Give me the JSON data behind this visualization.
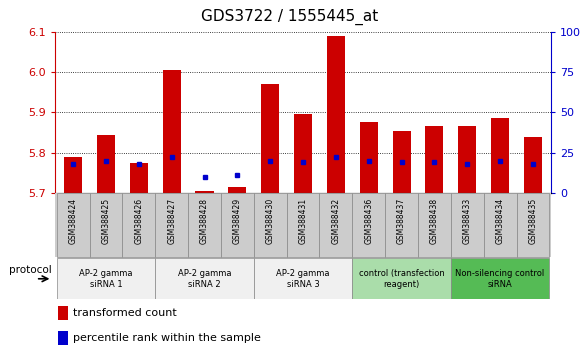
{
  "title": "GDS3722 / 1555445_at",
  "samples": [
    "GSM388424",
    "GSM388425",
    "GSM388426",
    "GSM388427",
    "GSM388428",
    "GSM388429",
    "GSM388430",
    "GSM388431",
    "GSM388432",
    "GSM388436",
    "GSM388437",
    "GSM388438",
    "GSM388433",
    "GSM388434",
    "GSM388435"
  ],
  "transformed_count": [
    5.79,
    5.845,
    5.775,
    6.005,
    5.705,
    5.715,
    5.97,
    5.895,
    6.09,
    5.875,
    5.855,
    5.865,
    5.865,
    5.885,
    5.84
  ],
  "percentile_rank": [
    18,
    20,
    18,
    22,
    10,
    11,
    20,
    19,
    22,
    20,
    19,
    19,
    18,
    20,
    18
  ],
  "ylim_left": [
    5.7,
    6.1
  ],
  "ylim_right": [
    0,
    100
  ],
  "yticks_left": [
    5.7,
    5.8,
    5.9,
    6.0,
    6.1
  ],
  "yticks_right": [
    0,
    25,
    50,
    75,
    100
  ],
  "yticks_right_labels": [
    "0",
    "25",
    "50",
    "75",
    "100%"
  ],
  "bar_color": "#cc0000",
  "dot_color": "#0000cc",
  "groups": [
    {
      "label": "AP-2 gamma\nsiRNA 1",
      "indices": [
        0,
        1,
        2
      ],
      "bg": "#f0f0f0",
      "border": "#888888"
    },
    {
      "label": "AP-2 gamma\nsiRNA 2",
      "indices": [
        3,
        4,
        5
      ],
      "bg": "#f0f0f0",
      "border": "#888888"
    },
    {
      "label": "AP-2 gamma\nsiRNA 3",
      "indices": [
        6,
        7,
        8
      ],
      "bg": "#f0f0f0",
      "border": "#888888"
    },
    {
      "label": "control (transfection\nreagent)",
      "indices": [
        9,
        10,
        11
      ],
      "bg": "#aaddaa",
      "border": "#888888"
    },
    {
      "label": "Non-silencing control\nsiRNA",
      "indices": [
        12,
        13,
        14
      ],
      "bg": "#55bb55",
      "border": "#888888"
    }
  ],
  "sample_bg": "#cccccc",
  "protocol_label": "protocol",
  "legend_items": [
    {
      "color": "#cc0000",
      "label": "transformed count"
    },
    {
      "color": "#0000cc",
      "label": "percentile rank within the sample"
    }
  ],
  "axis_label_color_left": "#cc0000",
  "axis_label_color_right": "#0000cc",
  "title_fontsize": 11
}
